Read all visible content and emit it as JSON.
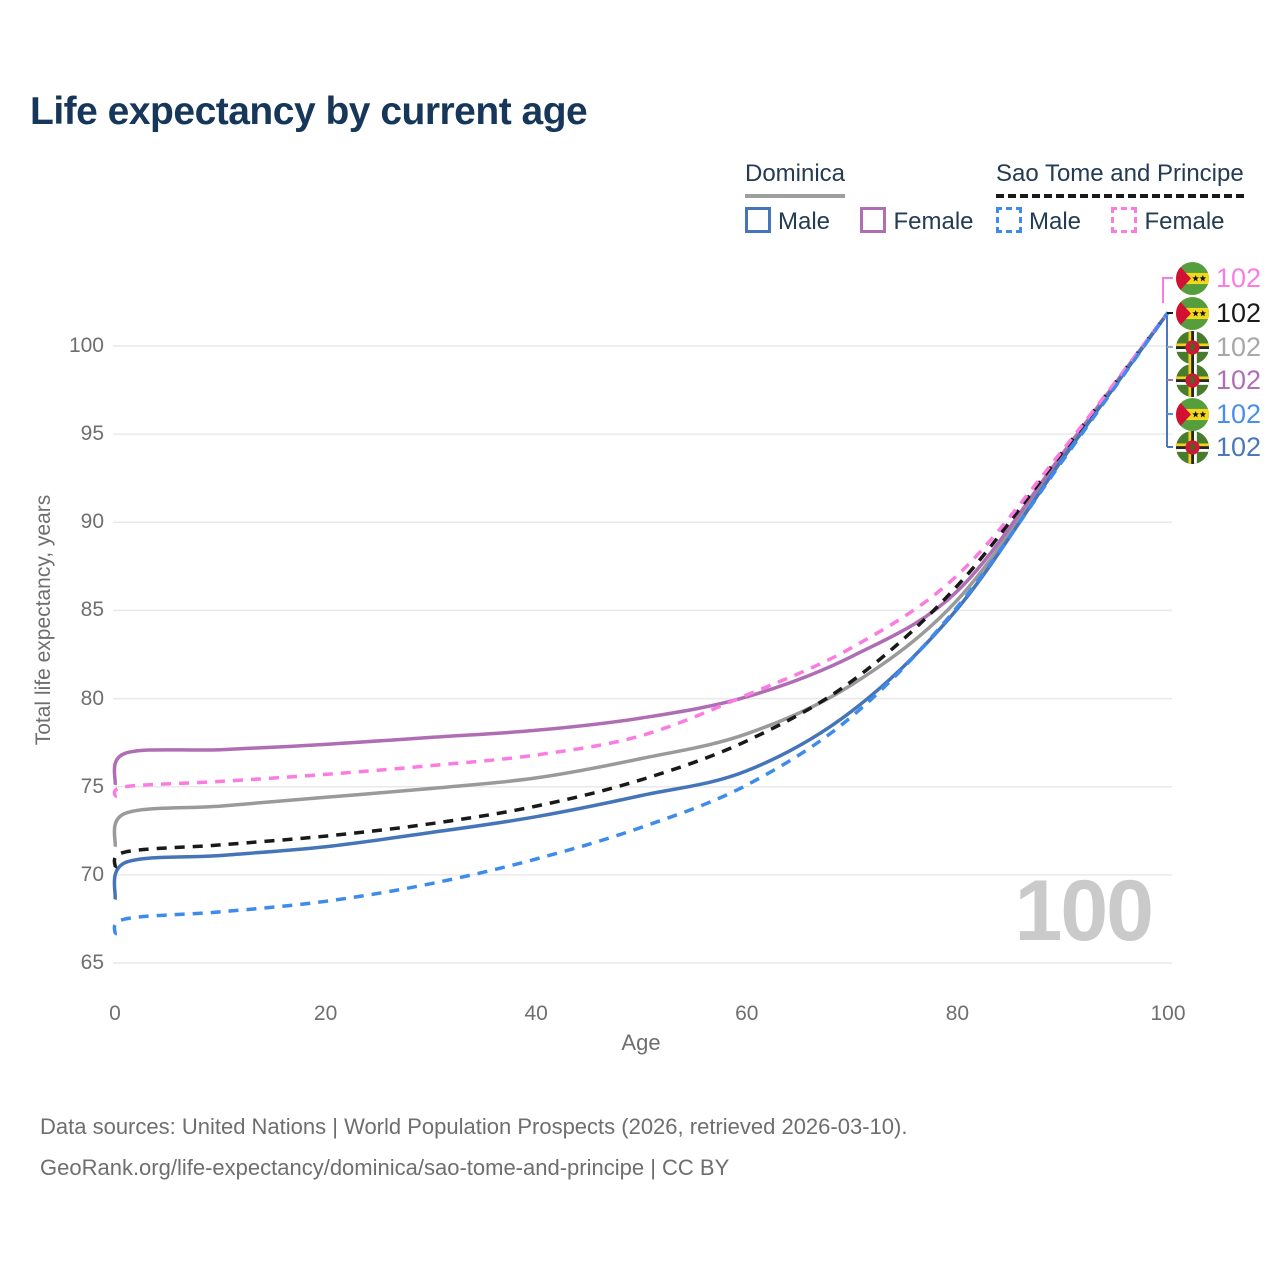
{
  "title": "Life expectancy by current age",
  "watermark": "100",
  "legend": {
    "position": "top-right",
    "groups": [
      {
        "name": "Dominica",
        "line_style": "solid",
        "underline_color": "#9e9e9e",
        "items": [
          {
            "label": "Male",
            "color": "#4575b9"
          },
          {
            "label": "Female",
            "color": "#af6eb4"
          }
        ]
      },
      {
        "name": "Sao Tome and Principe",
        "line_style": "dashed",
        "underline_color": "#191919",
        "items": [
          {
            "label": "Male",
            "color": "#3f8bec"
          },
          {
            "label": "Female",
            "color": "#fb7ce1"
          }
        ]
      }
    ]
  },
  "chart_data": {
    "type": "line",
    "title": "Life expectancy by current age",
    "xlabel": "Age",
    "ylabel": "Total life expectancy, years",
    "xlim": [
      0,
      100
    ],
    "ylim": [
      65,
      100
    ],
    "x_ticks": [
      0,
      20,
      40,
      60,
      80,
      100
    ],
    "y_ticks": [
      65,
      70,
      75,
      80,
      85,
      90,
      95,
      100
    ],
    "grid": "horizontal",
    "legend_position": "top-right",
    "x": [
      0,
      1,
      10,
      20,
      30,
      40,
      50,
      60,
      70,
      80,
      90,
      100
    ],
    "series": [
      {
        "name": "Dominica Both sexes",
        "country": "Dominica",
        "sex": "Both",
        "color": "#9a9a9a",
        "dash": "solid",
        "values": [
          71.6,
          73.5,
          73.9,
          74.4,
          74.9,
          75.5,
          76.6,
          78.0,
          80.8,
          85.6,
          93.7,
          101.9
        ]
      },
      {
        "name": "Dominica Female",
        "country": "Dominica",
        "sex": "Female",
        "color": "#af6eb4",
        "dash": "solid",
        "values": [
          75.1,
          76.9,
          77.1,
          77.4,
          77.8,
          78.2,
          78.9,
          80.1,
          82.4,
          86.1,
          93.9,
          101.9
        ]
      },
      {
        "name": "Dominica Male",
        "country": "Dominica",
        "sex": "Male",
        "color": "#4575b9",
        "dash": "solid",
        "values": [
          68.6,
          70.7,
          71.1,
          71.6,
          72.4,
          73.3,
          74.5,
          75.9,
          79.3,
          85.1,
          93.6,
          101.9
        ]
      },
      {
        "name": "Sao Tome and Principe Both sexes",
        "country": "Sao Tome and Principe",
        "sex": "Both",
        "color": "#191919",
        "dash": "dashed",
        "values": [
          70.4,
          71.3,
          71.7,
          72.2,
          72.9,
          73.9,
          75.4,
          77.6,
          81.0,
          86.4,
          94.0,
          101.9
        ]
      },
      {
        "name": "Sao Tome and Principe Female",
        "country": "Sao Tome and Principe",
        "sex": "Female",
        "color": "#fb7ce1",
        "dash": "dashed",
        "values": [
          74.4,
          75.0,
          75.3,
          75.7,
          76.2,
          76.8,
          77.9,
          80.2,
          82.9,
          87.0,
          94.1,
          101.9
        ]
      },
      {
        "name": "Sao Tome and Principe Male",
        "country": "Sao Tome and Principe",
        "sex": "Male",
        "color": "#3f8bec",
        "dash": "dashed",
        "values": [
          66.6,
          67.5,
          67.9,
          68.5,
          69.5,
          70.9,
          72.7,
          75.1,
          79.0,
          85.2,
          93.5,
          101.9
        ]
      }
    ],
    "end_labels": [
      {
        "series": "Sao Tome and Principe Female",
        "flag": "sao-tome-and-principe",
        "value": "102",
        "color": "#fb7ce1"
      },
      {
        "series": "Sao Tome and Principe Both sexes",
        "flag": "sao-tome-and-principe",
        "value": "102",
        "color": "#1a1a1a"
      },
      {
        "series": "Dominica Both sexes",
        "flag": "dominica",
        "value": "102",
        "color": "#a8a8a8"
      },
      {
        "series": "Dominica Female",
        "flag": "dominica",
        "value": "102",
        "color": "#b06fb5"
      },
      {
        "series": "Sao Tome and Principe Male",
        "flag": "sao-tome-and-principe",
        "value": "102",
        "color": "#4a8fe8"
      },
      {
        "series": "Dominica Male",
        "flag": "dominica",
        "value": "102",
        "color": "#4b77bc"
      }
    ]
  },
  "footer": {
    "line1": "Data sources: United Nations | World Population Prospects (2026, retrieved 2026-03-10).",
    "line2": "GeoRank.org/life-expectancy/dominica/sao-tome-and-principe | CC BY"
  }
}
